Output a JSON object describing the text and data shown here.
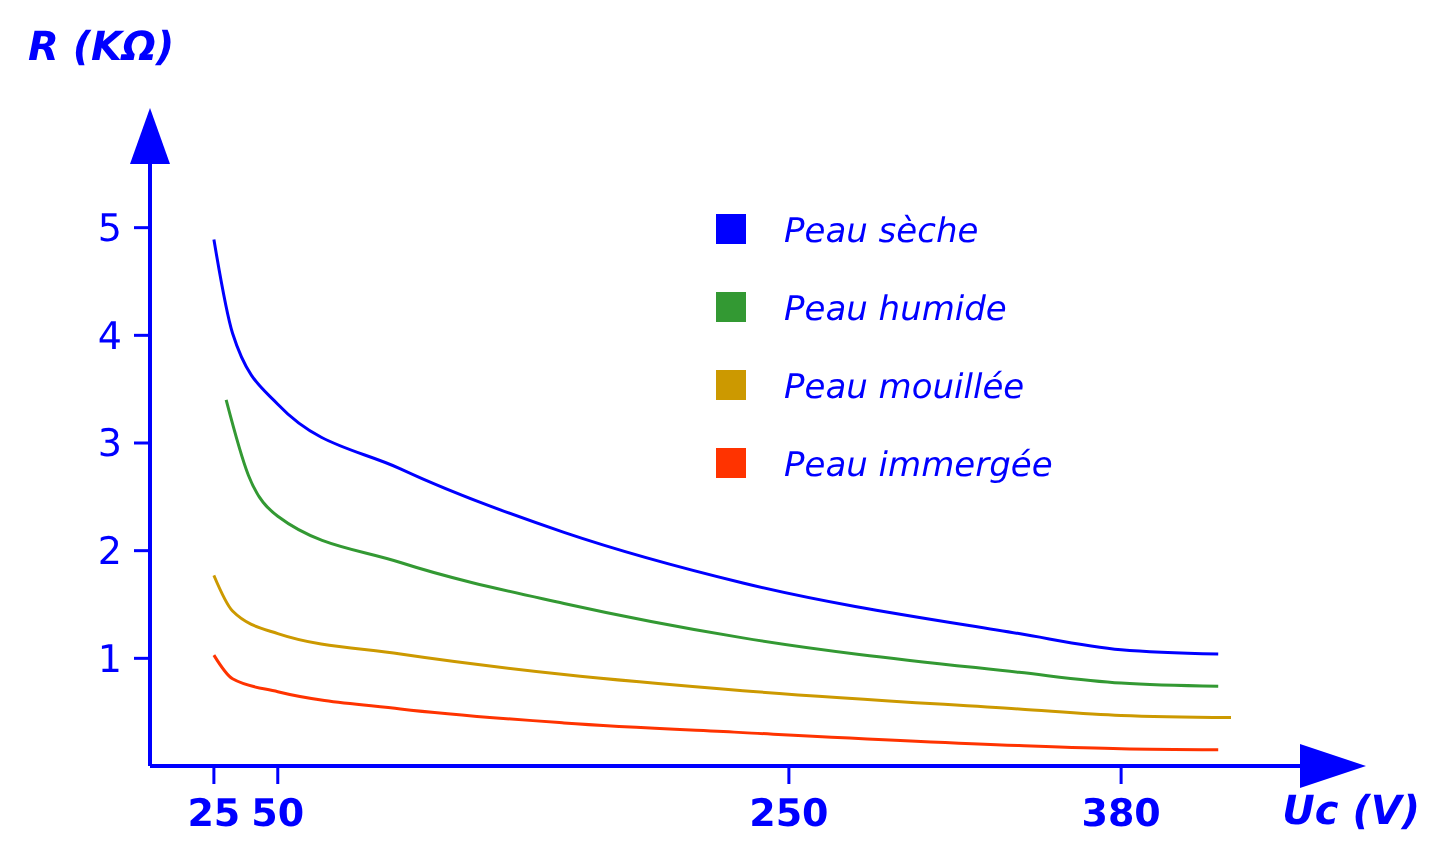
{
  "chart_data": {
    "type": "line",
    "xlabel": "Uc (V)",
    "ylabel": "R (KΩ)",
    "xlim": [
      0,
      450
    ],
    "ylim": [
      0,
      6
    ],
    "xticks": [
      25,
      50,
      250,
      380
    ],
    "yticks": [
      1,
      2,
      3,
      4,
      5
    ],
    "legend": "top right",
    "grid": false,
    "marker": "none",
    "line_style": "solid",
    "series": [
      {
        "name": "Peau sèche",
        "color": "#0000ff",
        "x": [
          25,
          32.3,
          50,
          98,
          162,
          232,
          340,
          380,
          418
        ],
        "values": [
          4.89,
          4.02,
          3.36,
          2.76,
          2.17,
          1.7,
          1.23,
          1.08,
          1.04
        ]
      },
      {
        "name": "Peau humide",
        "color": "#339933",
        "x": [
          29.8,
          38.5,
          50,
          98,
          162,
          232,
          340,
          380,
          418
        ],
        "values": [
          3.4,
          2.7,
          2.32,
          1.89,
          1.51,
          1.19,
          0.87,
          0.77,
          0.74
        ]
      },
      {
        "name": "Peau mouillée",
        "color": "#cc9900",
        "x": [
          25,
          32.3,
          50,
          98,
          162,
          232,
          340,
          380,
          423
        ],
        "values": [
          1.77,
          1.44,
          1.23,
          1.04,
          0.85,
          0.7,
          0.53,
          0.47,
          0.45
        ]
      },
      {
        "name": "Peau immergée",
        "color": "#ff3300",
        "x": [
          25,
          32.3,
          50,
          98,
          162,
          232,
          340,
          380,
          418
        ],
        "values": [
          1.03,
          0.81,
          0.69,
          0.53,
          0.4,
          0.31,
          0.19,
          0.16,
          0.15
        ]
      }
    ]
  }
}
